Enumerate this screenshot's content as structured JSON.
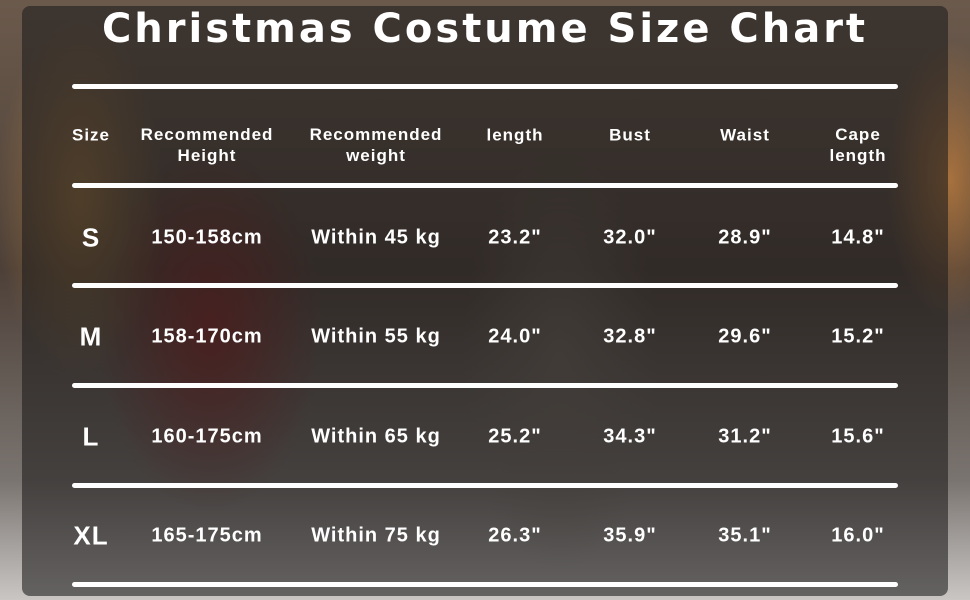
{
  "title": "Christmas Costume Size Chart",
  "headers": [
    {
      "line1": "Size",
      "line2": ""
    },
    {
      "line1": "Recommended",
      "line2": "Height"
    },
    {
      "line1": "Recommended",
      "line2": "weight"
    },
    {
      "line1": "length",
      "line2": ""
    },
    {
      "line1": "Bust",
      "line2": ""
    },
    {
      "line1": "Waist",
      "line2": ""
    },
    {
      "line1": "Cape",
      "line2": "length"
    }
  ],
  "rows": [
    [
      "S",
      "150-158cm",
      "Within 45 kg",
      "23.2\"",
      "32.0\"",
      "28.9\"",
      "14.8\""
    ],
    [
      "M",
      "158-170cm",
      "Within 55 kg",
      "24.0\"",
      "32.8\"",
      "29.6\"",
      "15.2\""
    ],
    [
      "L",
      "160-175cm",
      "Within 65 kg",
      "25.2\"",
      "34.3\"",
      "31.2\"",
      "15.6\""
    ],
    [
      "XL",
      "165-175cm",
      "Within 75 kg",
      "26.3\"",
      "35.9\"",
      "35.1\"",
      "16.0\""
    ]
  ]
}
